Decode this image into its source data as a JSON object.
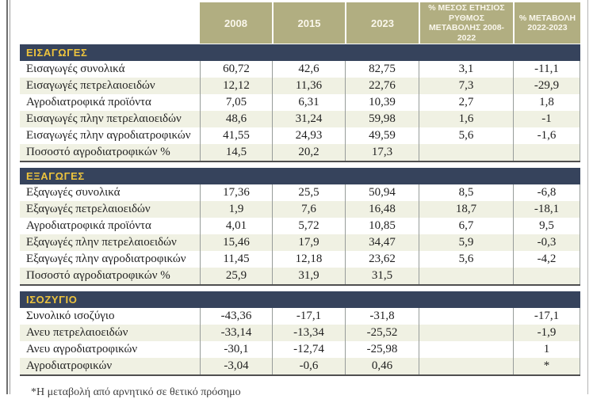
{
  "chart_data": {
    "type": "table",
    "columns": [
      "2008",
      "2015",
      "2023",
      "% ΜΕΣΟΣ ΕΤΗΣΙΟΣ ΡΥΘΜΟΣ ΜΕΤΑΒΟΛΗΣ 2008-2022",
      "% ΜΕΤΑΒΟΛΗ 2022-2023"
    ],
    "sections": [
      {
        "title": "ΕΙΣΑΓΩΓΕΣ",
        "rows": [
          {
            "label": "Εισαγωγές συνολικά",
            "values": [
              "60,72",
              "42,6",
              "82,75",
              "3,1",
              "-11,1"
            ]
          },
          {
            "label": "Εισαγωγές πετρελαιοειδών",
            "values": [
              "12,12",
              "11,36",
              "22,76",
              "7,3",
              "-29,9"
            ]
          },
          {
            "label": "Αγροδιατροφικά προϊόντα",
            "values": [
              "7,05",
              "6,31",
              "10,39",
              "2,7",
              "1,8"
            ]
          },
          {
            "label": "Εισαγωγές πλην πετρελαιοειδών",
            "values": [
              "48,6",
              "31,24",
              "59,98",
              "1,6",
              "-1"
            ]
          },
          {
            "label": "Εισαγωγές πλην αγροδιατροφικών",
            "values": [
              "41,55",
              "24,93",
              "49,59",
              "5,6",
              "-1,6"
            ]
          },
          {
            "label": "Ποσοστό αγροδιατροφικών %",
            "values": [
              "14,5",
              "20,2",
              "17,3",
              "",
              ""
            ]
          }
        ]
      },
      {
        "title": "ΕΞΑΓΩΓΕΣ",
        "rows": [
          {
            "label": "Εξαγωγές συνολικά",
            "values": [
              "17,36",
              "25,5",
              "50,94",
              "8,5",
              "-6,8"
            ]
          },
          {
            "label": "Εξαγωγές πετρελαιοειδών",
            "values": [
              "1,9",
              "7,6",
              "16,48",
              "18,7",
              "-18,1"
            ]
          },
          {
            "label": "Αγροδιατροφικά προϊόντα",
            "values": [
              "4,01",
              "5,72",
              "10,85",
              "6,7",
              "9,5"
            ]
          },
          {
            "label": "Εξαγωγές πλην πετρελαιοειδών",
            "values": [
              "15,46",
              "17,9",
              "34,47",
              "5,9",
              "-0,3"
            ]
          },
          {
            "label": "Εξαγωγές πλην αγροδιατροφικών",
            "values": [
              "11,45",
              "12,18",
              "23,62",
              "5,6",
              "-4,2"
            ]
          },
          {
            "label": "Ποσοστό αγροδιατροφικών %",
            "values": [
              "25,9",
              "31,9",
              "31,5",
              "",
              ""
            ]
          }
        ]
      },
      {
        "title": "ΙΣΟΖΥΓΙΟ",
        "rows": [
          {
            "label": "Συνολικό ισοζύγιο",
            "values": [
              "-43,36",
              "-17,1",
              "-31,8",
              "",
              "-17,1"
            ]
          },
          {
            "label": "Ανευ πετρελαιοειδών",
            "values": [
              "-33,14",
              "-13,34",
              "-25,52",
              "",
              "-1,9"
            ]
          },
          {
            "label": "Ανευ αγροδιατροφικών",
            "values": [
              "-30,1",
              "-12,74",
              "-25,98",
              "",
              "1"
            ]
          },
          {
            "label": "Αγροδιατροφικών",
            "values": [
              "-3,04",
              "-0,6",
              "0,46",
              "",
              "*"
            ]
          }
        ]
      }
    ],
    "footnote": "*Η μεταβολή από αρνητικό σε θετικό πρόσημο"
  },
  "colors": {
    "header_bg": "#b1ae81",
    "header_text": "#faf7ec",
    "section_bg": "#36435c",
    "section_text": "#eec43d",
    "stripe": "#f0f1e3",
    "row_text": "#1f1f1f"
  }
}
